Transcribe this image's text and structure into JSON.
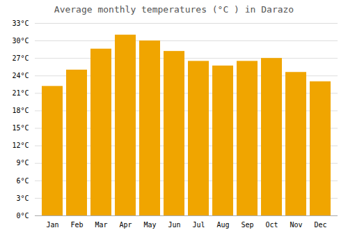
{
  "chart_data": {
    "type": "bar",
    "title": "Average monthly temperatures (°C ) in Darazo",
    "categories": [
      "Jan",
      "Feb",
      "Mar",
      "Apr",
      "May",
      "Jun",
      "Jul",
      "Aug",
      "Sep",
      "Oct",
      "Nov",
      "Dec"
    ],
    "values": [
      22.2,
      25.0,
      28.6,
      31.0,
      30.0,
      28.2,
      26.5,
      25.7,
      26.5,
      27.0,
      24.6,
      23.0
    ],
    "color": "#F0A500",
    "ylim": [
      0,
      33
    ],
    "yticks": [
      {
        "value": 0,
        "label": "0°C"
      },
      {
        "value": 3,
        "label": "3°C"
      },
      {
        "value": 6,
        "label": "6°C"
      },
      {
        "value": 9,
        "label": "9°C"
      },
      {
        "value": 12,
        "label": "12°C"
      },
      {
        "value": 15,
        "label": "15°C"
      },
      {
        "value": 18,
        "label": "18°C"
      },
      {
        "value": 21,
        "label": "21°C"
      },
      {
        "value": 24,
        "label": "24°C"
      },
      {
        "value": 27,
        "label": "27°C"
      },
      {
        "value": 30,
        "label": "30°C"
      },
      {
        "value": 33,
        "label": "33°C"
      }
    ],
    "grid": true
  }
}
